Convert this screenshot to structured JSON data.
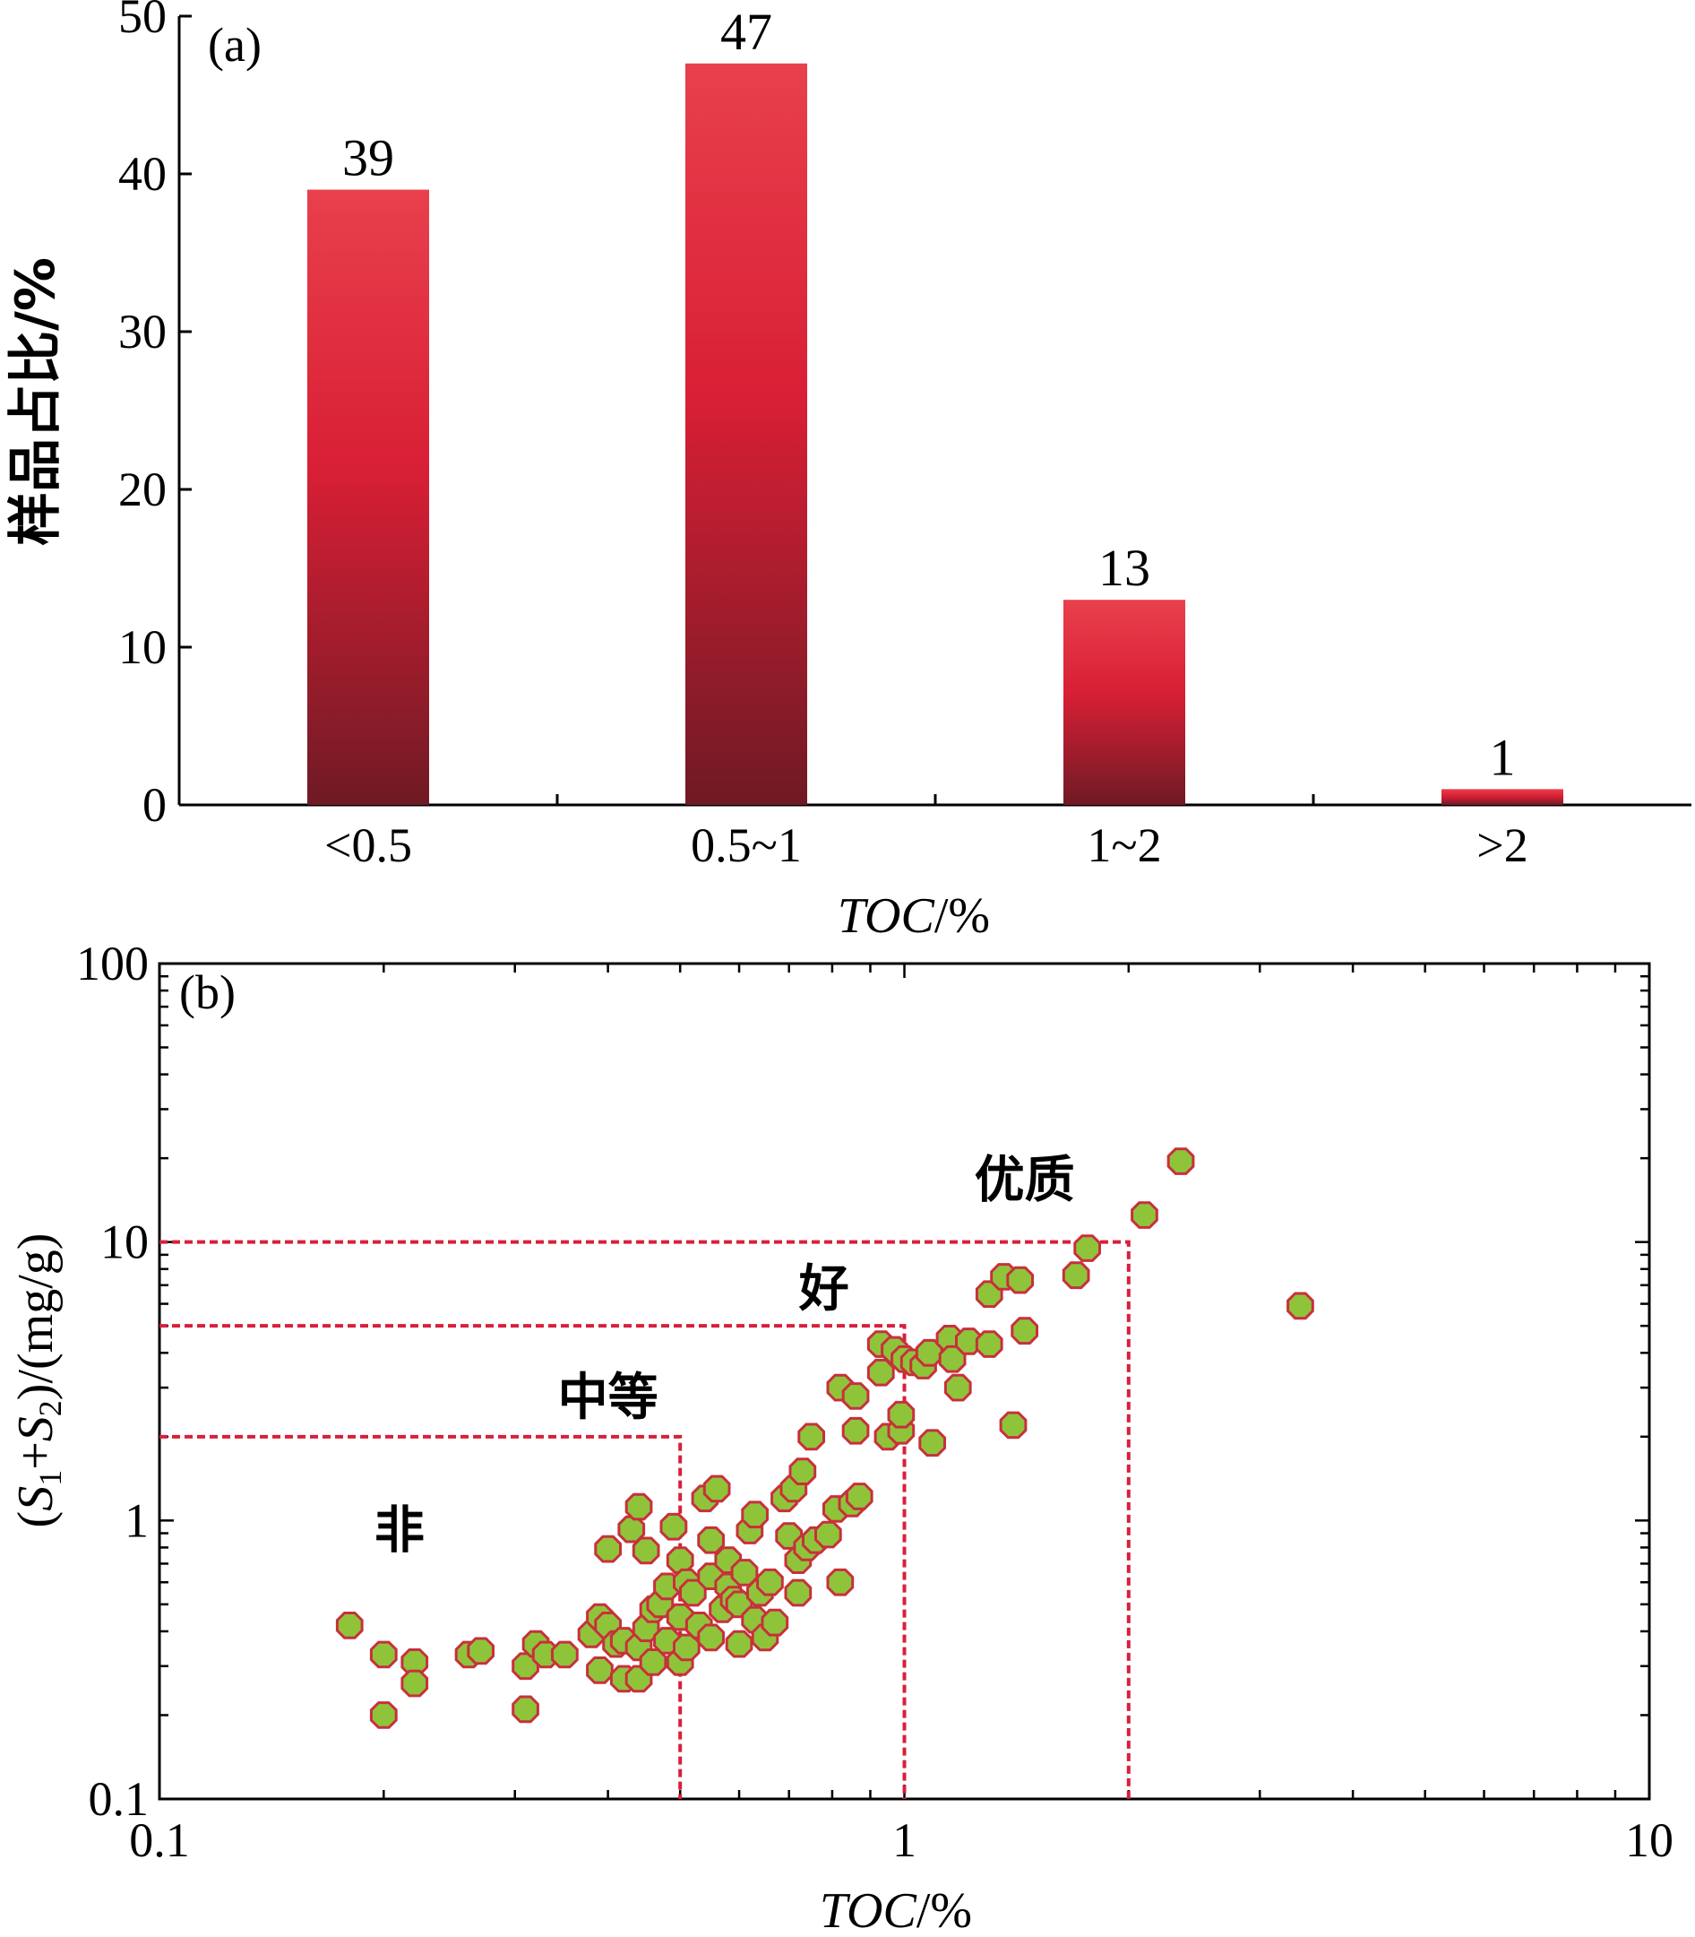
{
  "chart_data": [
    {
      "type": "bar",
      "panel_label": "(a)",
      "categories": [
        "<0.5",
        "0.5~1",
        "1~2",
        ">2"
      ],
      "values": [
        39,
        47,
        13,
        1
      ],
      "data_labels": [
        "39",
        "47",
        "13",
        "1"
      ],
      "xlabel": {
        "italic": "TOC",
        "rest": "/%"
      },
      "ylabel": "样品占比/%",
      "ylim": [
        0,
        50
      ],
      "yticks": [
        "0",
        "10",
        "20",
        "30",
        "40",
        "50"
      ],
      "bar_colors": {
        "top": "#e8404c",
        "mid": "#d91f35",
        "bottom": "#6f1a24"
      }
    },
    {
      "type": "scatter",
      "panel_label": "(b)",
      "xscale": "log",
      "yscale": "log",
      "xlim": [
        0.1,
        10
      ],
      "ylim": [
        0.1,
        100
      ],
      "xticks": [
        "0.1",
        "1",
        "10"
      ],
      "yticks": [
        "0.1",
        "1",
        "10",
        "100"
      ],
      "xlabel": {
        "italic": "TOC",
        "rest": "/%"
      },
      "ylabel": {
        "open": "(",
        "s": "S",
        "sub1": "1",
        "plus": "+",
        "sub2": "2",
        "rest": ")/(mg/g)"
      },
      "marker_fill": "#8fc43a",
      "marker_edge": "#c8303c",
      "threshold_color": "#d8203a",
      "thresholds": [
        {
          "x": 0.5,
          "y": 2
        },
        {
          "x": 1,
          "y": 5
        },
        {
          "x": 2,
          "y": 10
        }
      ],
      "zone_labels": [
        {
          "text": "非",
          "x": 0.21,
          "y": 0.8
        },
        {
          "text": "中等",
          "x": 0.4,
          "y": 2.4
        },
        {
          "text": "好",
          "x": 0.78,
          "y": 5.9
        },
        {
          "text": "优质",
          "x": 1.45,
          "y": 14.5
        }
      ],
      "points": [
        [
          0.18,
          0.42
        ],
        [
          0.2,
          0.33
        ],
        [
          0.2,
          0.2
        ],
        [
          0.22,
          0.31
        ],
        [
          0.22,
          0.26
        ],
        [
          0.26,
          0.33
        ],
        [
          0.27,
          0.34
        ],
        [
          0.31,
          0.3
        ],
        [
          0.31,
          0.21
        ],
        [
          0.32,
          0.36
        ],
        [
          0.33,
          0.33
        ],
        [
          0.35,
          0.33
        ],
        [
          0.38,
          0.39
        ],
        [
          0.39,
          0.45
        ],
        [
          0.39,
          0.29
        ],
        [
          0.4,
          0.42
        ],
        [
          0.4,
          0.79
        ],
        [
          0.41,
          0.36
        ],
        [
          0.42,
          0.37
        ],
        [
          0.42,
          0.27
        ],
        [
          0.43,
          0.93
        ],
        [
          0.44,
          1.12
        ],
        [
          0.44,
          0.27
        ],
        [
          0.44,
          0.35
        ],
        [
          0.45,
          0.41
        ],
        [
          0.45,
          0.78
        ],
        [
          0.46,
          0.48
        ],
        [
          0.46,
          0.31
        ],
        [
          0.47,
          0.5
        ],
        [
          0.48,
          0.58
        ],
        [
          0.48,
          0.37
        ],
        [
          0.49,
          0.95
        ],
        [
          0.5,
          0.72
        ],
        [
          0.5,
          0.45
        ],
        [
          0.5,
          0.31
        ],
        [
          0.51,
          0.6
        ],
        [
          0.51,
          0.35
        ],
        [
          0.52,
          0.55
        ],
        [
          0.53,
          0.42
        ],
        [
          0.54,
          1.2
        ],
        [
          0.55,
          0.85
        ],
        [
          0.55,
          0.63
        ],
        [
          0.55,
          0.38
        ],
        [
          0.56,
          1.3
        ],
        [
          0.57,
          0.48
        ],
        [
          0.58,
          0.58
        ],
        [
          0.58,
          0.72
        ],
        [
          0.59,
          0.52
        ],
        [
          0.6,
          0.5
        ],
        [
          0.6,
          0.36
        ],
        [
          0.61,
          0.65
        ],
        [
          0.62,
          0.92
        ],
        [
          0.63,
          1.05
        ],
        [
          0.63,
          0.44
        ],
        [
          0.64,
          0.55
        ],
        [
          0.65,
          0.38
        ],
        [
          0.66,
          0.6
        ],
        [
          0.67,
          0.43
        ],
        [
          0.69,
          1.2
        ],
        [
          0.7,
          0.88
        ],
        [
          0.71,
          1.3
        ],
        [
          0.72,
          0.72
        ],
        [
          0.72,
          0.55
        ],
        [
          0.73,
          1.5
        ],
        [
          0.74,
          0.8
        ],
        [
          0.75,
          2.0
        ],
        [
          0.76,
          0.85
        ],
        [
          0.79,
          0.89
        ],
        [
          0.81,
          1.1
        ],
        [
          0.82,
          0.6
        ],
        [
          0.82,
          3.0
        ],
        [
          0.85,
          1.15
        ],
        [
          0.86,
          2.8
        ],
        [
          0.86,
          2.1
        ],
        [
          0.87,
          1.22
        ],
        [
          0.93,
          4.3
        ],
        [
          0.93,
          3.4
        ],
        [
          0.95,
          2.0
        ],
        [
          0.97,
          4.1
        ],
        [
          0.99,
          2.1
        ],
        [
          0.99,
          2.4
        ],
        [
          1.0,
          3.8
        ],
        [
          1.03,
          3.7
        ],
        [
          1.06,
          3.6
        ],
        [
          1.08,
          4.0
        ],
        [
          1.09,
          1.9
        ],
        [
          1.15,
          4.5
        ],
        [
          1.16,
          3.8
        ],
        [
          1.18,
          3.0
        ],
        [
          1.22,
          4.4
        ],
        [
          1.3,
          4.3
        ],
        [
          1.3,
          6.5
        ],
        [
          1.36,
          7.5
        ],
        [
          1.4,
          2.2
        ],
        [
          1.43,
          7.3
        ],
        [
          1.45,
          4.8
        ],
        [
          1.7,
          7.6
        ],
        [
          1.76,
          9.5
        ],
        [
          2.1,
          12.5
        ],
        [
          2.35,
          19.5
        ],
        [
          3.4,
          5.9
        ]
      ]
    }
  ]
}
